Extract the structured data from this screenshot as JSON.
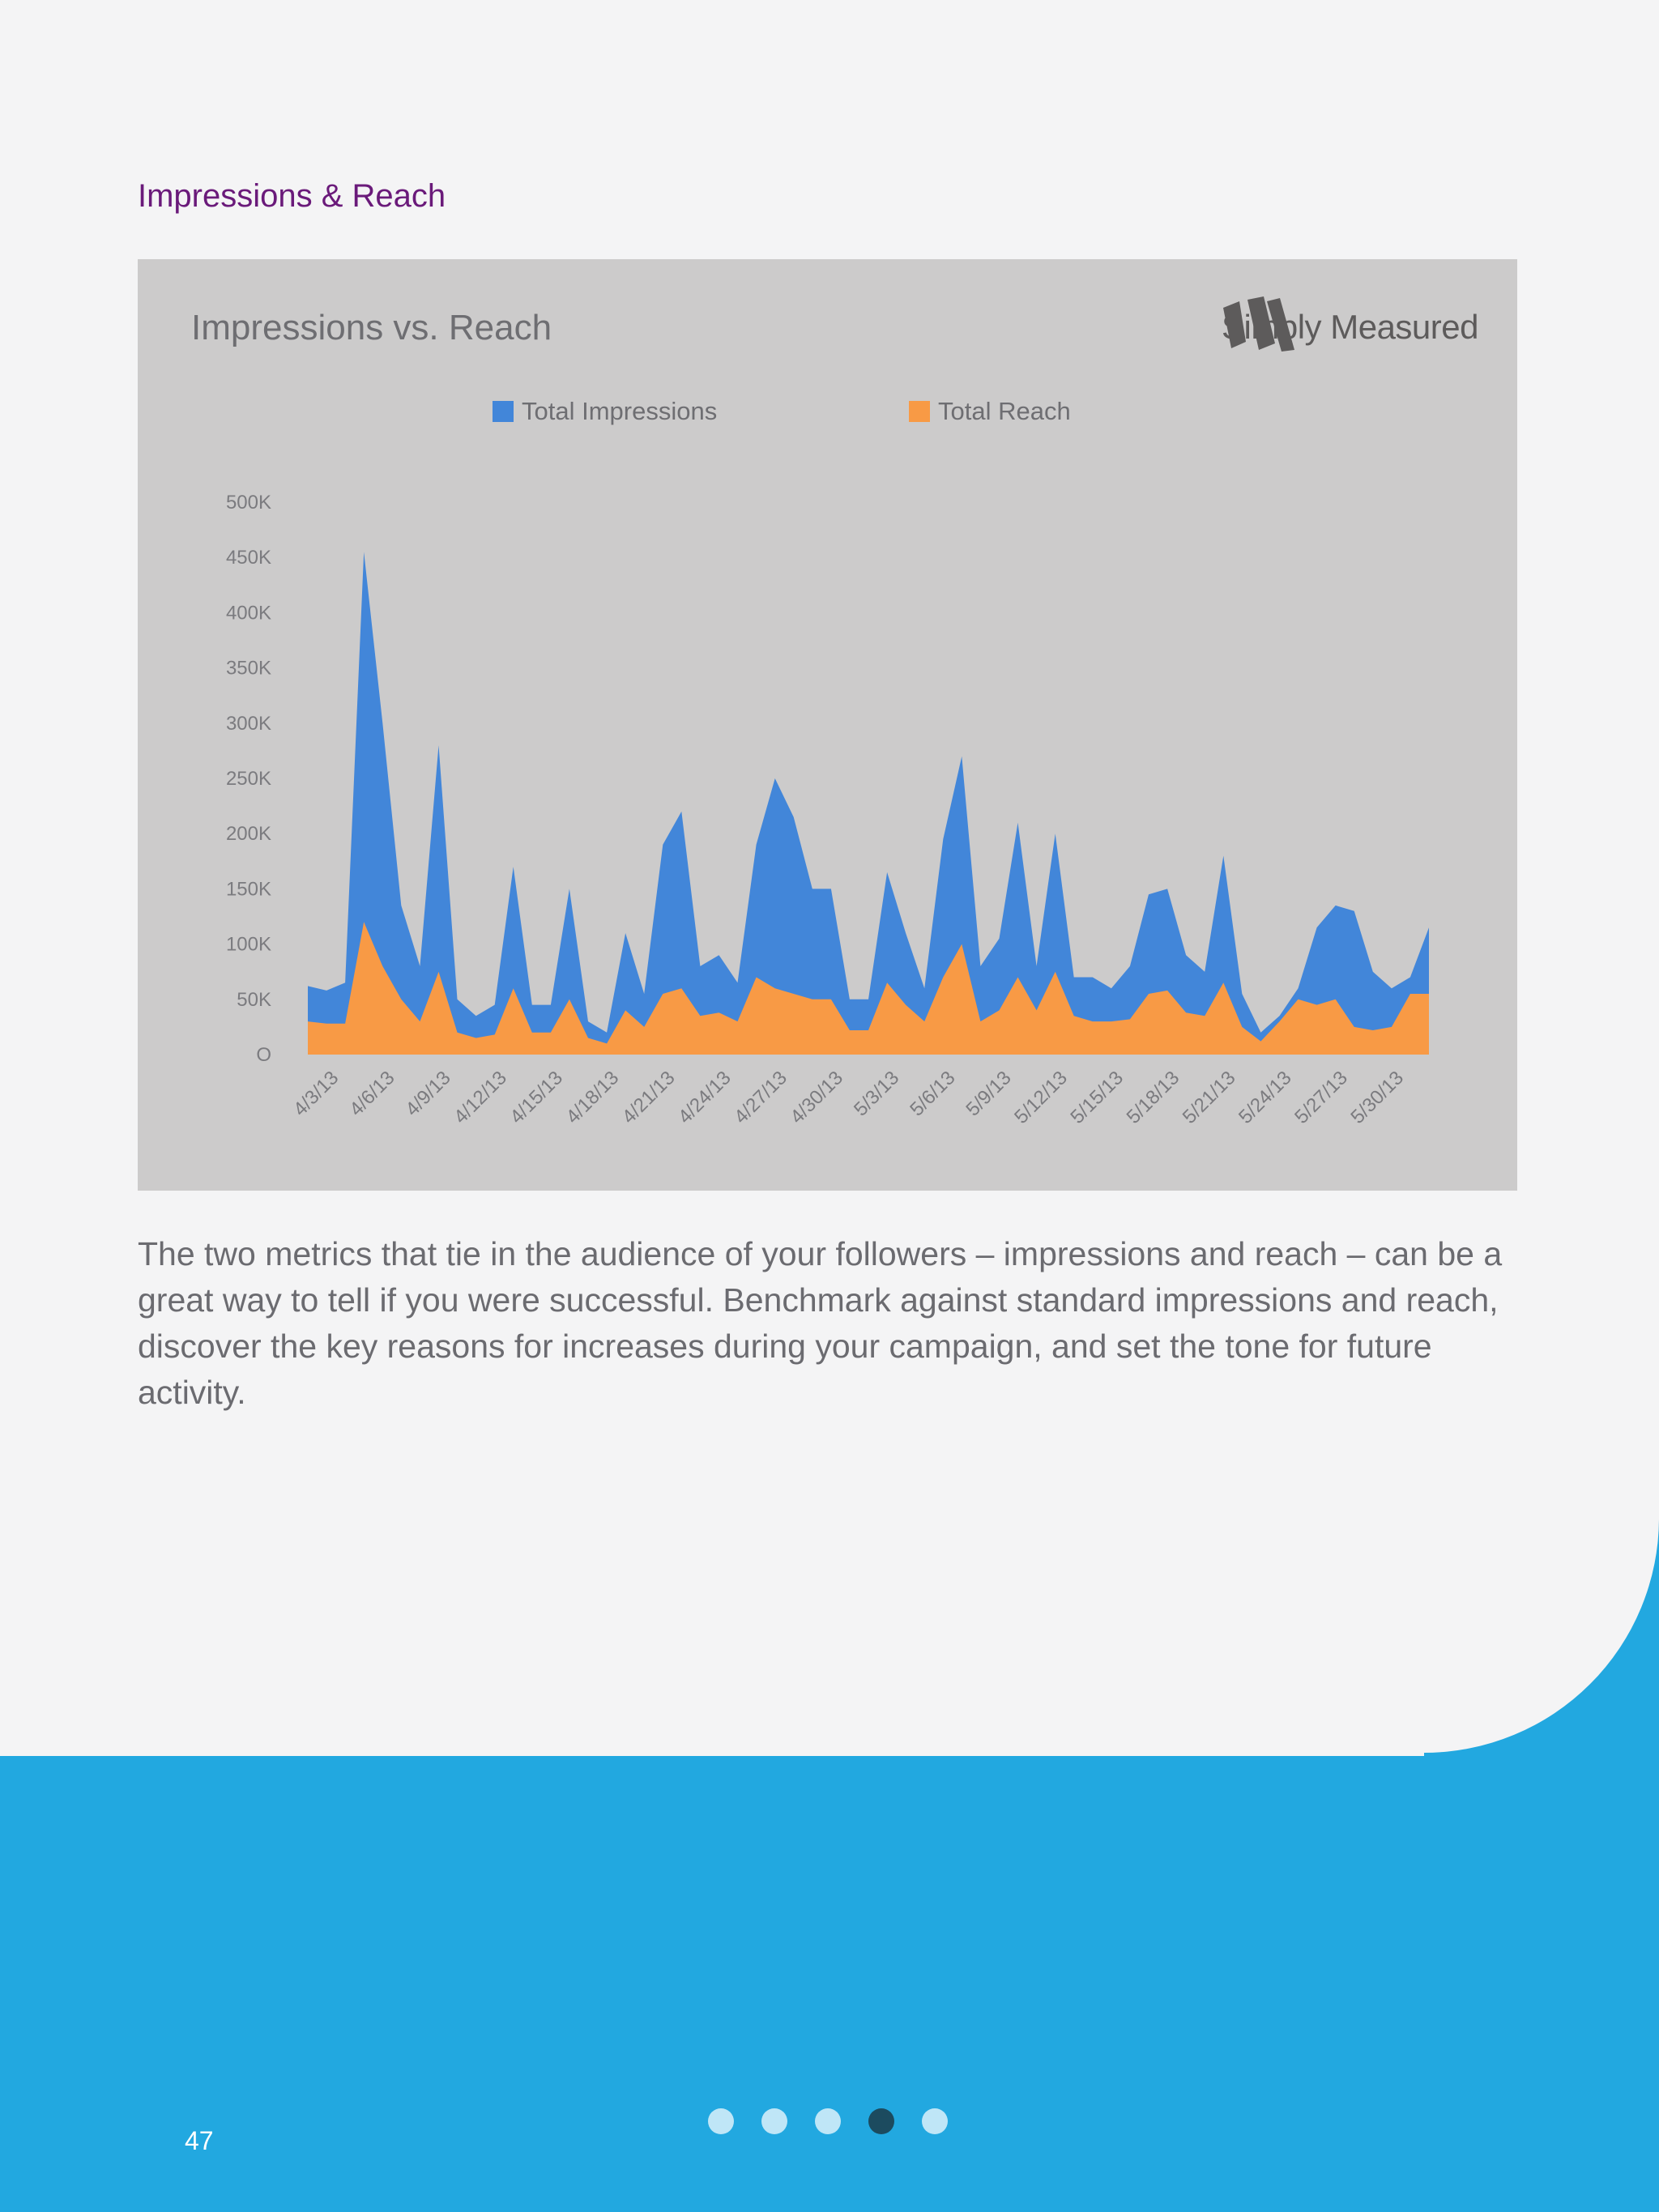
{
  "page": {
    "section_heading": "Impressions & Reach",
    "body_text": "The two metrics that tie in the audience of your followers – impressions and reach – can be a great way to tell if you were successful. Benchmark against standard impressions and reach, discover the key reasons for increases during your campaign, and set the tone for future activity.",
    "page_number": "47",
    "pager": {
      "count": 5,
      "active_index": 3
    }
  },
  "brand": {
    "name": "Simply Measured"
  },
  "colors": {
    "impressions": "#4286d9",
    "reach": "#f89a45",
    "heading": "#6a1a7a",
    "band": "#22a8e0"
  },
  "chart_data": {
    "type": "area",
    "title": "Impressions vs. Reach",
    "legend_position": "top",
    "grid": false,
    "y_ticks": [
      "O",
      "50K",
      "100K",
      "150K",
      "200K",
      "250K",
      "300K",
      "350K",
      "400K",
      "450K",
      "500K"
    ],
    "ylim": [
      0,
      500000
    ],
    "x_tick_labels": [
      "4/3/13",
      "4/6/13",
      "4/9/13",
      "4/12/13",
      "4/15/13",
      "4/18/13",
      "4/21/13",
      "4/24/13",
      "4/27/13",
      "4/30/13",
      "5/3/13",
      "5/6/13",
      "5/9/13",
      "5/12/13",
      "5/15/13",
      "5/18/13",
      "5/21/13",
      "5/24/13",
      "5/27/13",
      "5/30/13"
    ],
    "x_start": "2013-04-02",
    "series": [
      {
        "name": "Total Impressions",
        "color": "#4286d9",
        "values": [
          62000,
          58000,
          65000,
          455000,
          300000,
          135000,
          80000,
          280000,
          50000,
          35000,
          45000,
          170000,
          45000,
          45000,
          150000,
          30000,
          20000,
          110000,
          55000,
          190000,
          220000,
          80000,
          90000,
          65000,
          190000,
          250000,
          215000,
          150000,
          150000,
          50000,
          50000,
          165000,
          110000,
          60000,
          195000,
          270000,
          80000,
          105000,
          210000,
          80000,
          200000,
          70000,
          70000,
          60000,
          80000,
          145000,
          150000,
          90000,
          75000,
          180000,
          55000,
          20000,
          35000,
          60000,
          115000,
          135000,
          130000,
          75000,
          60000,
          70000,
          115000
        ]
      },
      {
        "name": "Total Reach",
        "color": "#f89a45",
        "values": [
          30000,
          28000,
          28000,
          120000,
          80000,
          50000,
          30000,
          75000,
          20000,
          15000,
          18000,
          60000,
          20000,
          20000,
          50000,
          15000,
          10000,
          40000,
          25000,
          55000,
          60000,
          35000,
          38000,
          30000,
          70000,
          60000,
          55000,
          50000,
          50000,
          22000,
          22000,
          65000,
          45000,
          30000,
          70000,
          100000,
          30000,
          40000,
          70000,
          40000,
          75000,
          35000,
          30000,
          30000,
          32000,
          55000,
          58000,
          38000,
          35000,
          65000,
          25000,
          12000,
          30000,
          50000,
          45000,
          50000,
          25000,
          22000,
          25000,
          55000,
          55000
        ]
      }
    ]
  }
}
